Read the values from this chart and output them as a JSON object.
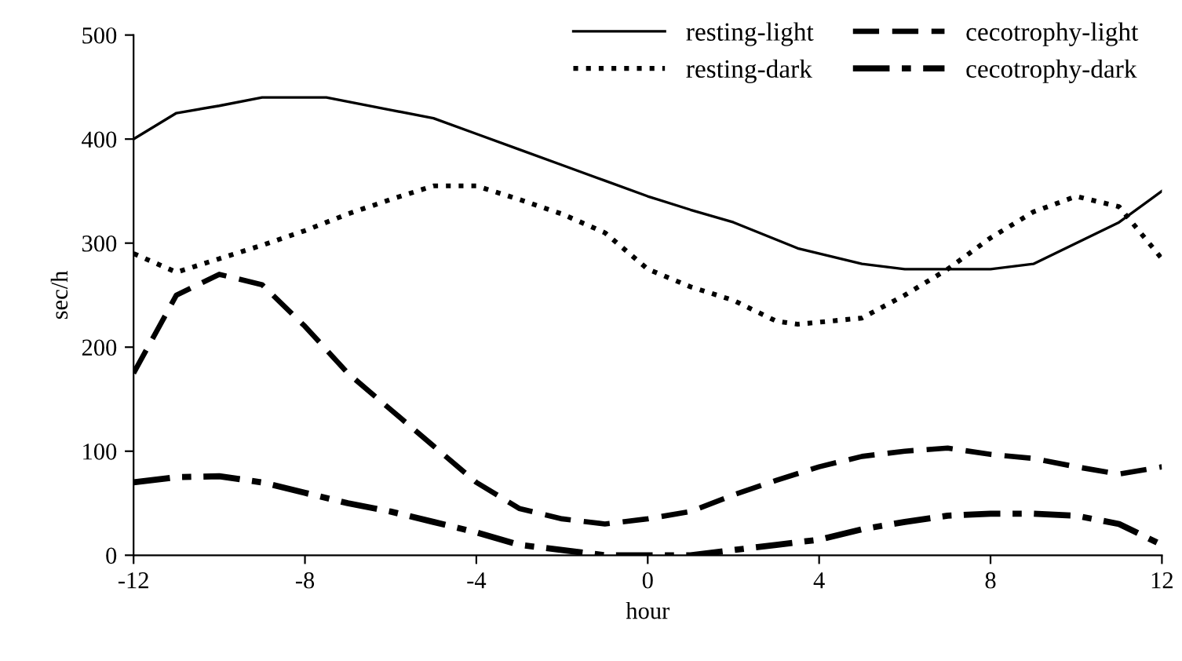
{
  "chart_data": {
    "type": "line",
    "xlabel": "hour",
    "ylabel": "sec/h",
    "xlim": [
      -12,
      12
    ],
    "xticks": [
      -12,
      -8,
      -4,
      0,
      4,
      8,
      12
    ],
    "ylim": [
      0,
      500
    ],
    "yticks": [
      0,
      100,
      200,
      300,
      400,
      500
    ],
    "grid": false,
    "legend": "top right",
    "marker": "none",
    "series": [
      {
        "name": "resting-light",
        "color": "#000000",
        "line_style": "solid",
        "x": [
          -12,
          -11,
          -10,
          -9,
          -7.5,
          -6,
          -5,
          -4,
          -3,
          -2,
          -1,
          0,
          1,
          2,
          3.5,
          5,
          6,
          7,
          8,
          9,
          10,
          11,
          12
        ],
        "values": [
          400,
          425,
          432,
          440,
          440,
          428,
          420,
          405,
          390,
          375,
          360,
          345,
          332,
          320,
          295,
          280,
          275,
          275,
          275,
          280,
          300,
          320,
          350
        ]
      },
      {
        "name": "resting-dark",
        "color": "#000000",
        "line_style": "dotted",
        "x": [
          -12,
          -11,
          -10,
          -9,
          -8,
          -7,
          -6,
          -5,
          -4,
          -3,
          -2,
          -1,
          0,
          1,
          2,
          3,
          3.5,
          5,
          6,
          7,
          7.5,
          8,
          9,
          10,
          11,
          12
        ],
        "values": [
          290,
          272,
          285,
          298,
          312,
          328,
          342,
          355,
          355,
          342,
          328,
          310,
          275,
          258,
          245,
          225,
          222,
          228,
          250,
          275,
          290,
          305,
          330,
          345,
          335,
          285
        ]
      },
      {
        "name": "cecotrophy-light",
        "color": "#000000",
        "line_style": "dashed",
        "x": [
          -12,
          -11,
          -10,
          -9,
          -8,
          -7,
          -6,
          -5,
          -4,
          -3,
          -2,
          -1,
          0,
          1,
          2,
          3,
          4,
          5,
          6,
          7,
          8,
          9,
          10,
          11,
          12
        ],
        "values": [
          175,
          250,
          270,
          260,
          220,
          175,
          140,
          105,
          70,
          45,
          35,
          30,
          35,
          42,
          58,
          72,
          85,
          95,
          100,
          103,
          97,
          93,
          85,
          78,
          85
        ]
      },
      {
        "name": "cecotrophy-dark",
        "color": "#000000",
        "line_style": "dashdot",
        "x": [
          -12,
          -11,
          -10,
          -9,
          -8,
          -7,
          -6,
          -5,
          -4,
          -3,
          -2,
          -1,
          0,
          1,
          2,
          3,
          4,
          5,
          6,
          7,
          8,
          9,
          10,
          11,
          12
        ],
        "values": [
          70,
          75,
          76,
          70,
          60,
          50,
          42,
          32,
          22,
          10,
          5,
          0,
          0,
          0,
          5,
          10,
          15,
          25,
          32,
          38,
          40,
          40,
          38,
          30,
          10
        ]
      }
    ]
  }
}
